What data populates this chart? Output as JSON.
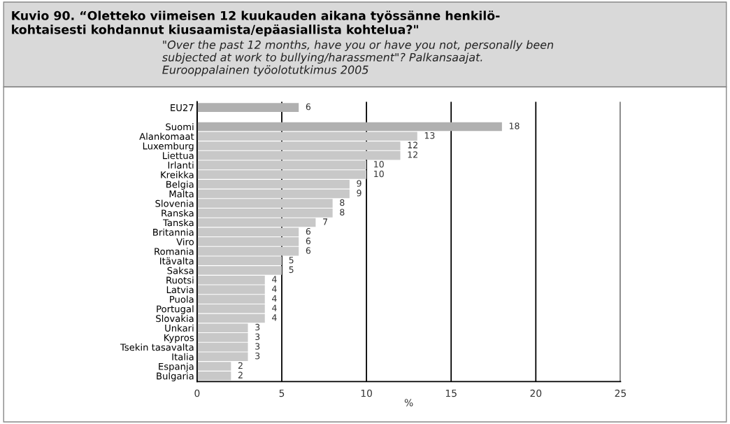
{
  "chart_data": {
    "type": "bar",
    "orientation": "horizontal",
    "title": "Kuvio 90. “Oletteko viimeisen 12 kuukauden aikana työssänne henkilö-\nkohtaisesti kohdannut kiusaamista/epäasiallista kohtelua?\"",
    "subtitle": "\"Over the past 12 months, have you or have you not, personally been\nsubjected at work to bullying/harassment\"? Palkansaajat.\nEurooppalainen työolotutkimus 2005",
    "categories": [
      "EU27",
      null,
      "Suomi",
      "Alankomaat",
      "Luxemburg",
      "Liettua",
      "Irlanti",
      "Kreikka",
      "Belgia",
      "Malta",
      "Slovenia",
      "Ranska",
      "Tanska",
      "Britannia",
      "Viro",
      "Romania",
      "Itävalta",
      "Saksa",
      "Ruotsi",
      "Latvia",
      "Puola",
      "Portugal",
      "Slovakia",
      "Unkari",
      "Kypros",
      "Tsekin tasavalta",
      "Italia",
      "Espanja",
      "Bulgaria"
    ],
    "values": [
      6,
      null,
      18,
      13,
      12,
      12,
      10,
      10,
      9,
      9,
      8,
      8,
      7,
      6,
      6,
      6,
      5,
      5,
      4,
      4,
      4,
      4,
      4,
      3,
      3,
      3,
      3,
      2,
      2
    ],
    "colors": [
      "#b0b0b0",
      "#b0b0b0",
      "#b0b0b0",
      "#c8c8c8",
      "#c8c8c8",
      "#c8c8c8",
      "#c8c8c8",
      "#c8c8c8",
      "#c8c8c8",
      "#c8c8c8",
      "#c8c8c8",
      "#c8c8c8",
      "#c8c8c8",
      "#c8c8c8",
      "#c8c8c8",
      "#c8c8c8",
      "#c8c8c8",
      "#c8c8c8",
      "#c8c8c8",
      "#c8c8c8",
      "#c8c8c8",
      "#c8c8c8",
      "#c8c8c8",
      "#c8c8c8",
      "#c8c8c8",
      "#c8c8c8",
      "#c8c8c8",
      "#c8c8c8",
      "#c8c8c8"
    ],
    "xlabel": "%",
    "xlim": [
      0,
      25
    ],
    "xticks": [
      0,
      5,
      10,
      15,
      20,
      25
    ],
    "grid": "x",
    "data_labels": true
  }
}
